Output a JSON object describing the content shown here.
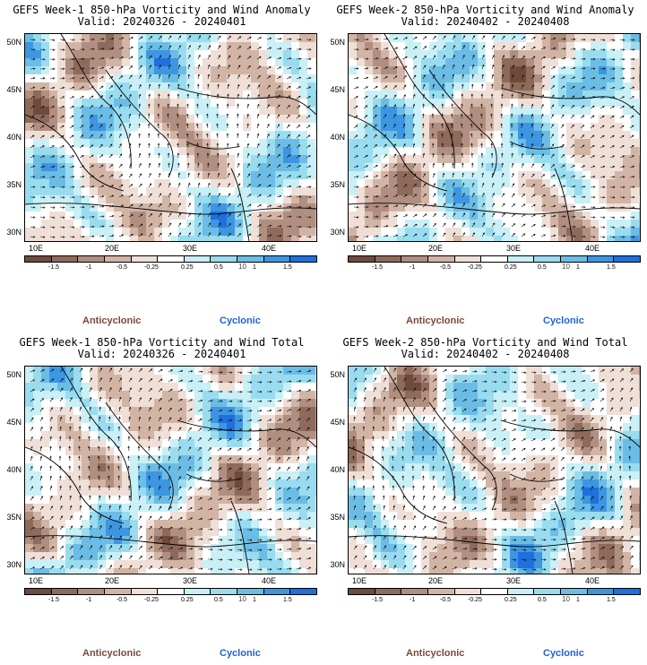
{
  "colors": {
    "scale": [
      "#6e4a3c",
      "#8e6a5a",
      "#b08f80",
      "#d2b4a5",
      "#efdfd7",
      "#ffffff",
      "#c8f0f6",
      "#99dcf0",
      "#6bbde6",
      "#3d96e2",
      "#1f6fdc"
    ],
    "anticyclonic": "#7a4a38",
    "cyclonic": "#1f62d6",
    "coast": "#000000",
    "arrow": "#111111"
  },
  "latitude_labels": [
    "50N",
    "45N",
    "40N",
    "35N",
    "30N"
  ],
  "longitude_labels": [
    "10E",
    "20E",
    "30E",
    "40E"
  ],
  "colorbar_ticks": [
    "-1.5",
    "-1",
    "-0.5",
    "-0.25",
    "0.25",
    "0.5",
    "1",
    "1.5"
  ],
  "colorbar_center": "10",
  "legend": {
    "anticyclonic": "Anticyclonic",
    "cyclonic": "Cyclonic"
  },
  "panels": [
    {
      "title": "GEFS Week-1 850-hPa Vorticity and Wind Anomaly",
      "valid": "Valid: 20240326 - 20240401"
    },
    {
      "title": "GEFS Week-2 850-hPa Vorticity and Wind Anomaly",
      "valid": "Valid: 20240402 - 20240408"
    },
    {
      "title": "GEFS Week-1 850-hPa Vorticity and Wind Total",
      "valid": "Valid: 20240326 - 20240401"
    },
    {
      "title": "GEFS Week-2 850-hPa Vorticity and Wind Total",
      "valid": "Valid: 20240402 - 20240408"
    }
  ]
}
